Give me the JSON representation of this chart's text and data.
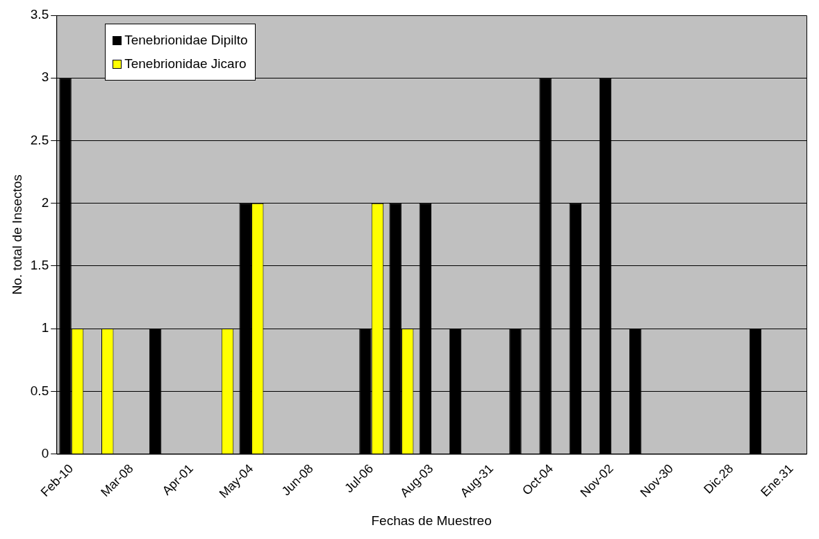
{
  "chart_data": {
    "type": "bar",
    "xlabel": "Fechas de Muestreo",
    "ylabel": "No. total de Insectos",
    "categories": [
      "Feb-10",
      null,
      "Mar-08",
      null,
      "Apr-01",
      null,
      "May-04",
      null,
      "Jun-08",
      null,
      "Jul-06",
      null,
      "Aug-03",
      null,
      "Aug-31",
      null,
      "Oct-04",
      null,
      "Nov-02",
      null,
      "Nov-30",
      null,
      "Dic.28",
      null,
      "Ene.31"
    ],
    "series": [
      {
        "name": "Tenebrionidae Dipilto",
        "color": "#000000",
        "values": [
          3,
          0,
          0,
          1,
          0,
          0,
          2,
          0,
          0,
          0,
          1,
          2,
          2,
          1,
          0,
          1,
          3,
          2,
          3,
          1,
          0,
          0,
          0,
          1,
          0
        ]
      },
      {
        "name": "Tenebrionidae Jicaro",
        "color": "#ffff00",
        "values": [
          1,
          1,
          0,
          0,
          0,
          1,
          2,
          0,
          0,
          0,
          2,
          1,
          0,
          0,
          0,
          0,
          0,
          0,
          0,
          0,
          0,
          0,
          0,
          0,
          0
        ]
      }
    ],
    "ylim": [
      0,
      3.5
    ],
    "yticks": [
      0,
      0.5,
      1,
      1.5,
      2,
      2.5,
      3,
      3.5
    ],
    "grid": "y",
    "legend": "top left"
  }
}
